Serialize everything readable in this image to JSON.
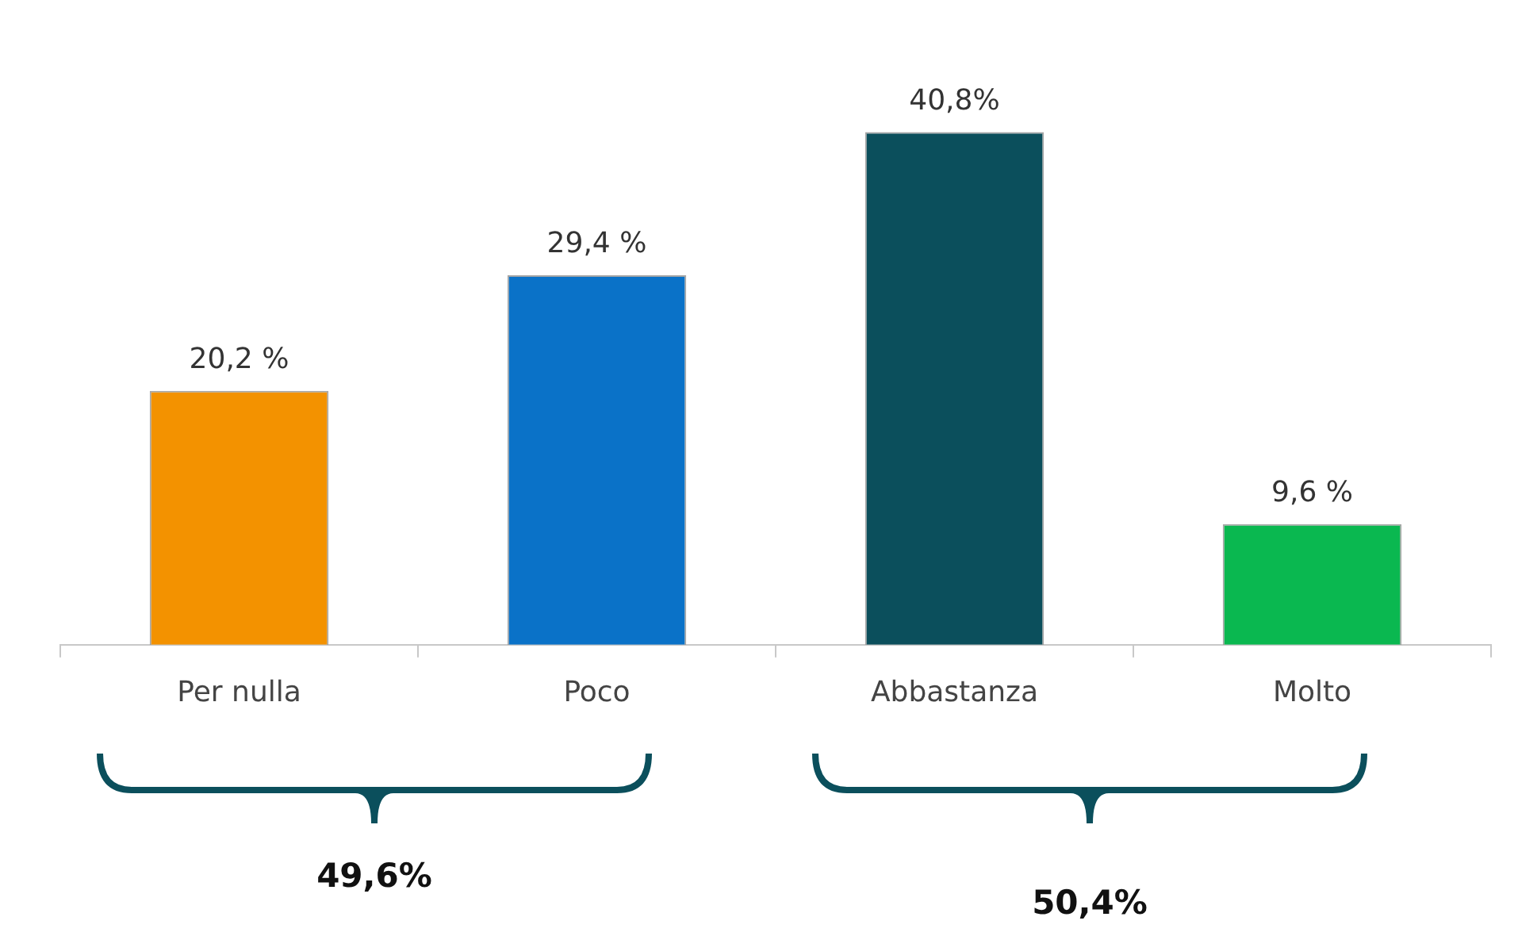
{
  "chart_data": {
    "type": "bar",
    "categories": [
      "Per nulla",
      "Poco",
      "Abbastanza",
      "Molto"
    ],
    "values": [
      20.2,
      29.4,
      40.8,
      9.6
    ],
    "colors": [
      "#f39200",
      "#0a72c8",
      "#0b4f5c",
      "#0ab850"
    ],
    "value_labels": [
      "20,2 %",
      "29,4 %",
      "40,8%",
      "9,6 %"
    ],
    "annotations": [
      "49,6%",
      "50,4%"
    ],
    "legend": false,
    "grid": false
  }
}
